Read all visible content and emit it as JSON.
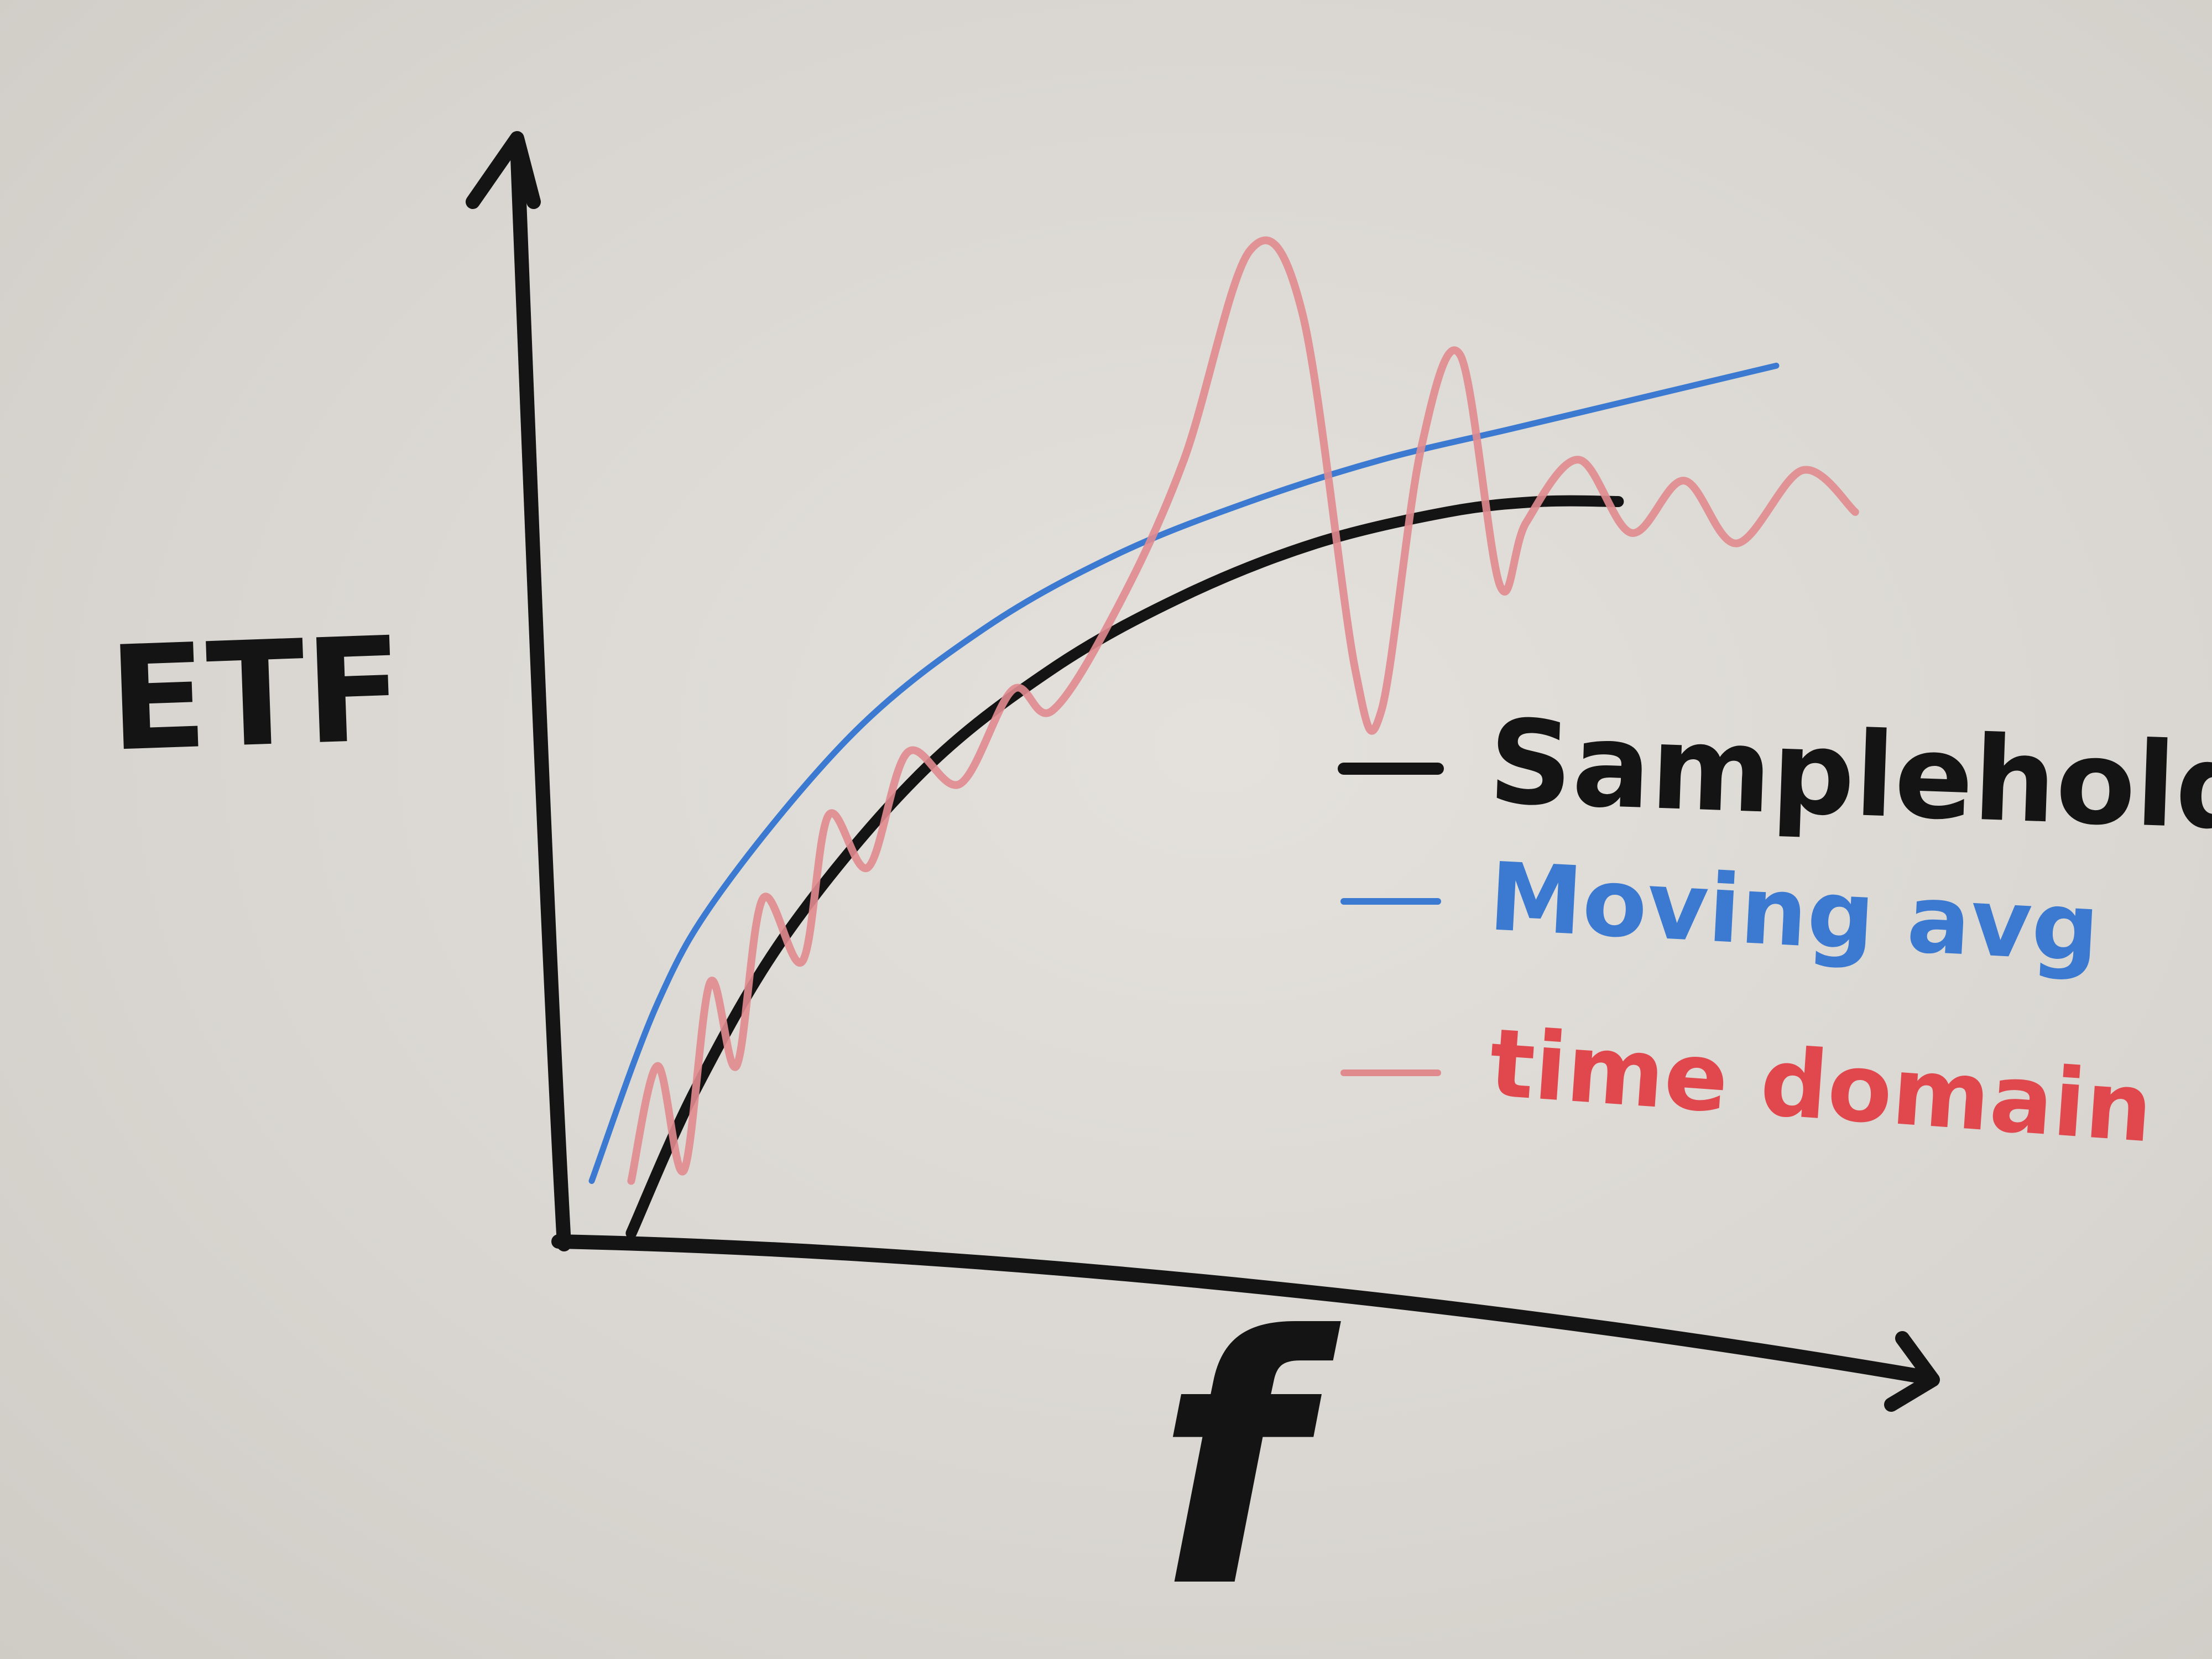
{
  "chart_data": {
    "type": "line",
    "title": "",
    "xlabel": "f",
    "ylabel": "ETF",
    "grid": false,
    "legend": "right",
    "xlim": [
      0,
      10
    ],
    "ylim": [
      0,
      10
    ],
    "series": [
      {
        "name": "Samplehold",
        "color": "#141414",
        "points": [
          [
            0.3,
            0.0
          ],
          [
            0.8,
            1.4
          ],
          [
            1.5,
            2.9
          ],
          [
            2.5,
            4.4
          ],
          [
            3.5,
            5.4
          ],
          [
            4.5,
            6.1
          ],
          [
            5.5,
            6.6
          ],
          [
            6.5,
            6.9
          ],
          [
            7.2,
            7.0
          ],
          [
            7.8,
            7.0
          ]
        ]
      },
      {
        "name": "Moving avg",
        "color": "#3b7ad0",
        "points": [
          [
            0.0,
            0.5
          ],
          [
            0.5,
            2.2
          ],
          [
            1.0,
            3.3
          ],
          [
            2.0,
            4.8
          ],
          [
            3.0,
            5.8
          ],
          [
            4.0,
            6.5
          ],
          [
            5.0,
            7.0
          ],
          [
            6.0,
            7.4
          ],
          [
            7.0,
            7.7
          ],
          [
            8.0,
            8.0
          ],
          [
            9.0,
            8.3
          ]
        ]
      },
      {
        "name": "time domain",
        "color": "#e08a8e",
        "points": [
          [
            0.3,
            0.5
          ],
          [
            0.5,
            1.6
          ],
          [
            0.7,
            0.6
          ],
          [
            0.9,
            2.4
          ],
          [
            1.1,
            1.6
          ],
          [
            1.3,
            3.2
          ],
          [
            1.6,
            2.6
          ],
          [
            1.8,
            4.0
          ],
          [
            2.1,
            3.5
          ],
          [
            2.4,
            4.6
          ],
          [
            2.8,
            4.3
          ],
          [
            3.2,
            5.2
          ],
          [
            3.5,
            5.0
          ],
          [
            4.0,
            6.0
          ],
          [
            4.5,
            7.4
          ],
          [
            5.0,
            9.4
          ],
          [
            5.4,
            8.8
          ],
          [
            5.8,
            5.4
          ],
          [
            6.0,
            5.0
          ],
          [
            6.3,
            7.5
          ],
          [
            6.6,
            8.4
          ],
          [
            6.9,
            6.2
          ],
          [
            7.1,
            6.8
          ],
          [
            7.5,
            7.4
          ],
          [
            7.9,
            6.7
          ],
          [
            8.3,
            7.2
          ],
          [
            8.7,
            6.6
          ],
          [
            9.2,
            7.3
          ],
          [
            9.6,
            6.9
          ]
        ]
      }
    ]
  }
}
